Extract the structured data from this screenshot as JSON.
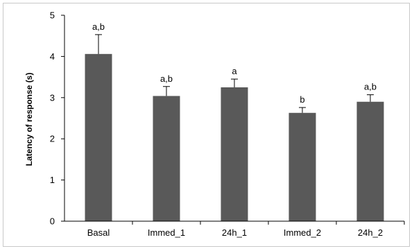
{
  "chart_data": {
    "type": "bar",
    "title": "",
    "xlabel": "",
    "ylabel": "Latency of response (s)",
    "categories": [
      "Basal",
      "Immed_1",
      "24h_1",
      "Immed_2",
      "24h_2"
    ],
    "values": [
      4.06,
      3.04,
      3.25,
      2.63,
      2.9
    ],
    "error_upper": [
      0.47,
      0.23,
      0.2,
      0.13,
      0.17
    ],
    "significance_labels": [
      "a,b",
      "a,b",
      "a",
      "b",
      "a,b"
    ],
    "ylim": [
      0,
      5
    ],
    "yticks": [
      "0",
      "1",
      "2",
      "3",
      "4",
      "5"
    ],
    "grid": false,
    "legend": "none",
    "bar_color": "#595959"
  }
}
